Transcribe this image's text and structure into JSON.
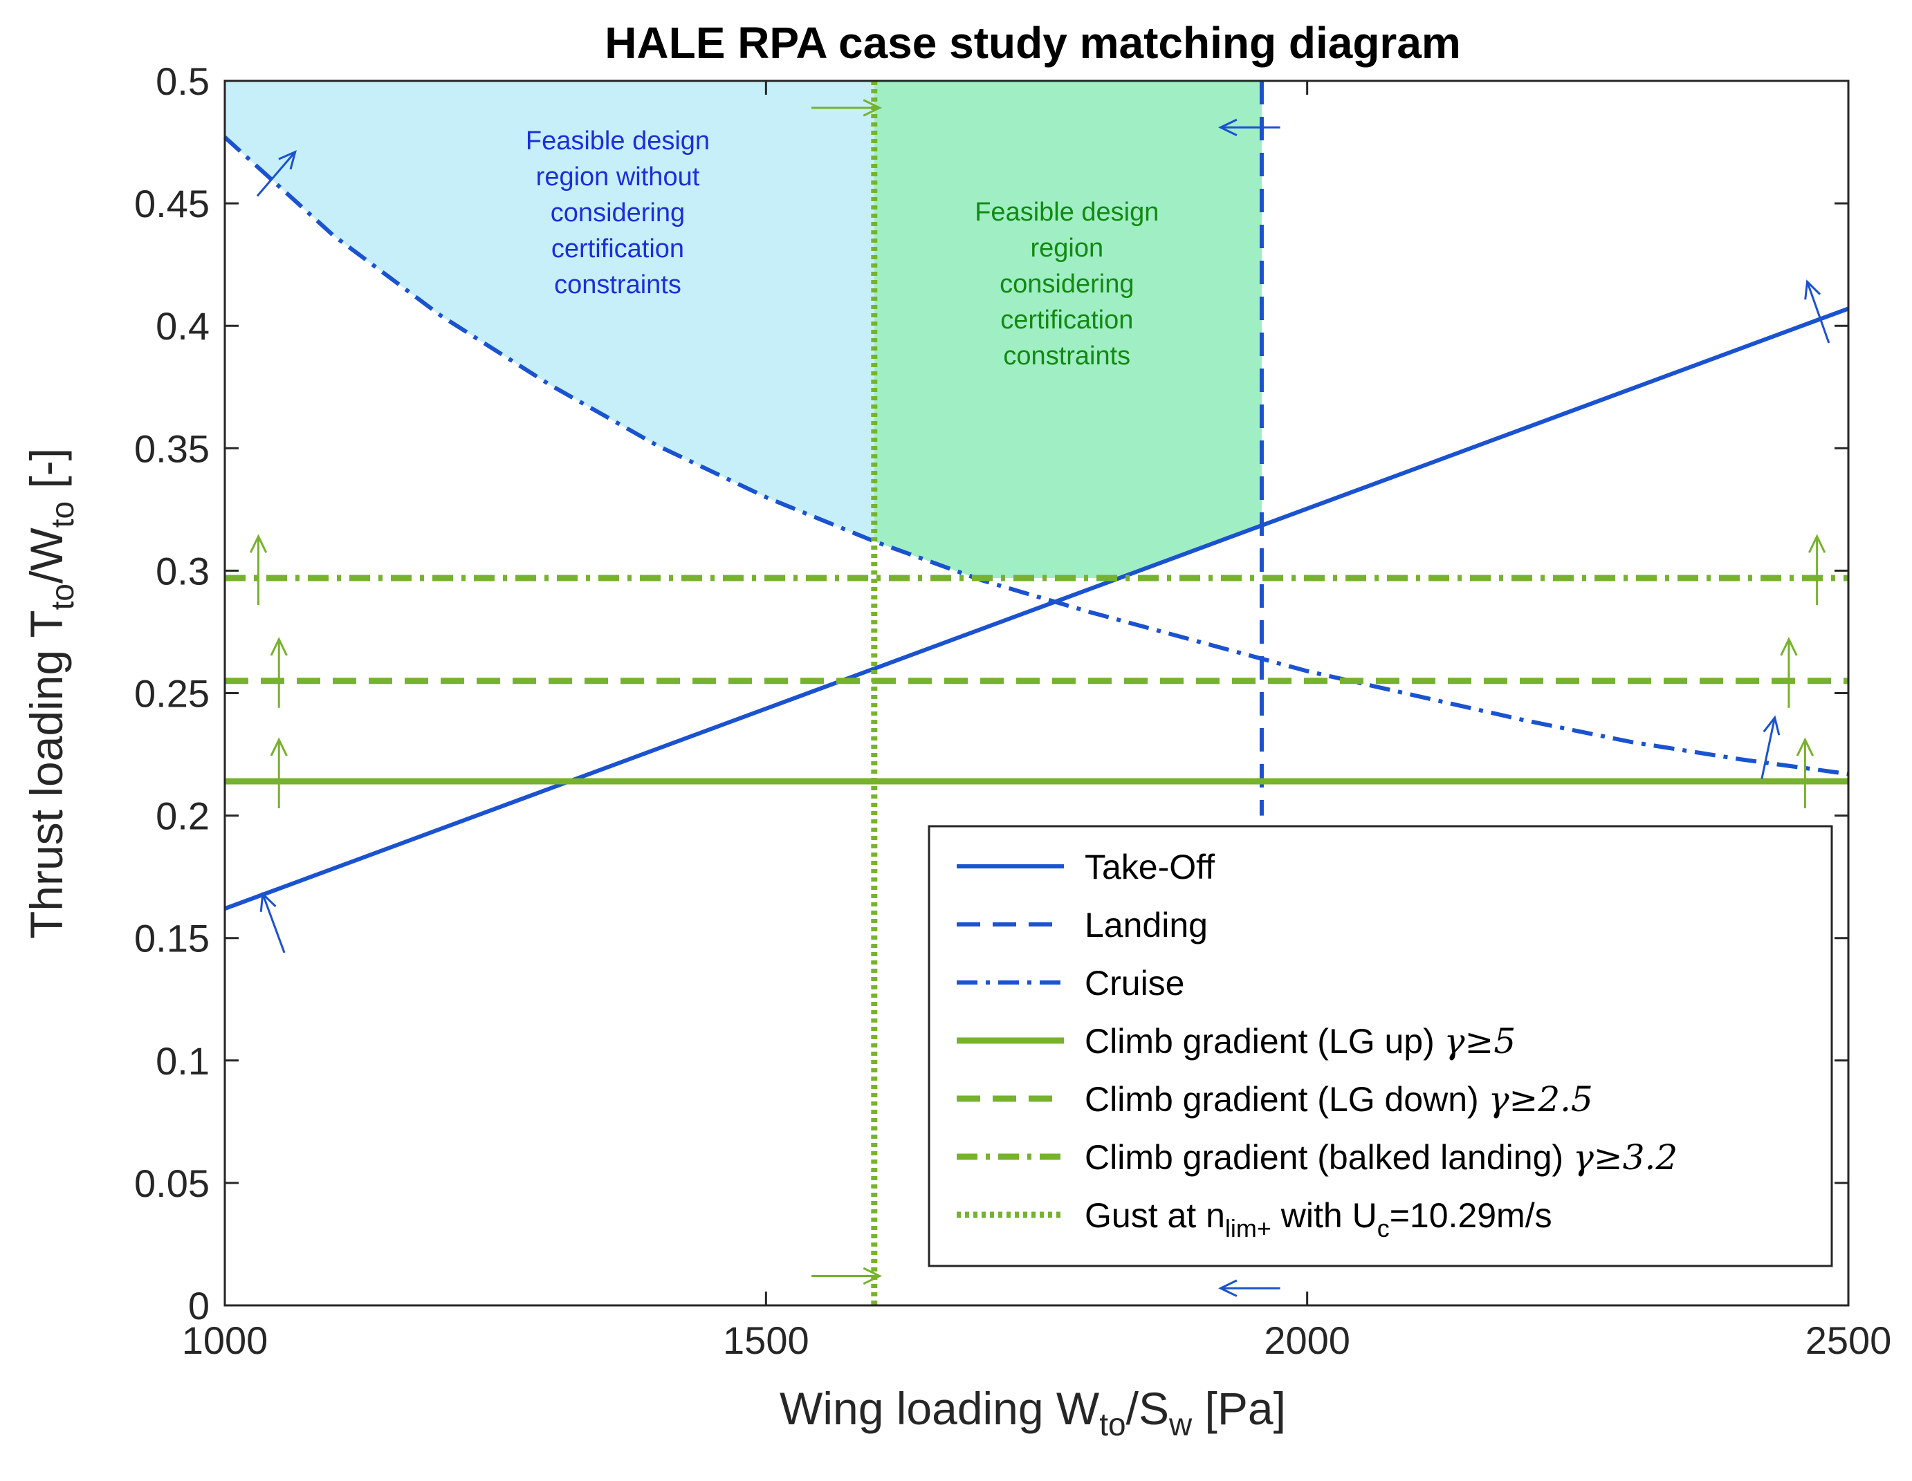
{
  "chart_data": {
    "type": "line",
    "title": "HALE RPA case study matching diagram",
    "xlabel": {
      "main": "Wing loading W",
      "sub1": "to",
      "mid": "/S",
      "sub2": "w",
      "tail": " [Pa]"
    },
    "ylabel": {
      "main": "Thrust loading T",
      "sub1": "to",
      "mid": "/W",
      "sub2": "to",
      "tail": " [-]"
    },
    "xlim": [
      1000,
      2500
    ],
    "ylim": [
      0,
      0.5
    ],
    "xticks": [
      1000,
      1500,
      2000,
      2500
    ],
    "xtick_labels": [
      "1000",
      "1500",
      "2000",
      "2500"
    ],
    "yticks": [
      0,
      0.05,
      0.1,
      0.15,
      0.2,
      0.25,
      0.3,
      0.35,
      0.4,
      0.45,
      0.5
    ],
    "ytick_labels": [
      "0",
      "0.05",
      "0.1",
      "0.15",
      "0.2",
      "0.25",
      "0.3",
      "0.35",
      "0.4",
      "0.45",
      "0.5"
    ],
    "colors": {
      "blue": "#1a52d0",
      "green": "#77b22e",
      "fill_blue": "#c7effa",
      "fill_green": "#a0eec4",
      "text_blue": "#1a2fd8",
      "text_green": "#118a11"
    },
    "series": [
      {
        "id": "takeoff",
        "name": "Take-Off",
        "kind": "line",
        "color": "#1a52d0",
        "dash": "solid",
        "x": [
          1000,
          2500
        ],
        "y": [
          0.162,
          0.407
        ]
      },
      {
        "id": "landing",
        "name": "Landing",
        "kind": "vline",
        "color": "#1a52d0",
        "dash": "dashed",
        "x": 1958
      },
      {
        "id": "cruise",
        "name": "Cruise",
        "kind": "curve",
        "color": "#1a52d0",
        "dash": "dashdot",
        "x": [
          1000,
          1100,
          1200,
          1300,
          1400,
          1500,
          1600,
          1700,
          1800,
          1900,
          2000,
          2100,
          2200,
          2300,
          2400,
          2500
        ],
        "y": [
          0.477,
          0.437,
          0.404,
          0.376,
          0.351,
          0.33,
          0.312,
          0.296,
          0.283,
          0.271,
          0.259,
          0.249,
          0.239,
          0.23,
          0.223,
          0.217
        ]
      },
      {
        "id": "climb_up",
        "name": "Climb gradient (LG up) ",
        "gamma": "γ≥5",
        "kind": "hline",
        "color": "#77b22e",
        "dash": "solid",
        "y": 0.214
      },
      {
        "id": "climb_down",
        "name": "Climb gradient (LG down) ",
        "gamma": "γ≥2.5",
        "kind": "hline",
        "color": "#77b22e",
        "dash": "dashed",
        "y": 0.255
      },
      {
        "id": "climb_balked",
        "name": "Climb gradient (balked landing) ",
        "gamma": "γ≥3.2",
        "kind": "hline",
        "color": "#77b22e",
        "dash": "dashdot",
        "y": 0.297
      },
      {
        "id": "gust",
        "name": "Gust at n",
        "sub": "lim+",
        "tail": " with U",
        "sub2": "c",
        "tail2": "=10.29m/s",
        "kind": "vline",
        "color": "#77b22e",
        "dash": "dotted",
        "x": 1600
      }
    ],
    "regions": [
      {
        "id": "region-no-cert",
        "label": [
          "Feasible design",
          "region without",
          "considering",
          "certification",
          "constraints"
        ],
        "color": "#c7effa",
        "text_color": "#1a2fd8",
        "x_range": [
          1000,
          1600
        ],
        "label_at": [
          1363,
          0.472
        ]
      },
      {
        "id": "region-cert",
        "label": [
          "Feasible design",
          "region",
          "considering",
          "certification",
          "constraints"
        ],
        "color": "#a0eec4",
        "text_color": "#118a11",
        "x_range": [
          1600,
          1958
        ],
        "label_at": [
          1778,
          0.443
        ]
      }
    ],
    "legend": {
      "location": "bottom-right"
    }
  }
}
